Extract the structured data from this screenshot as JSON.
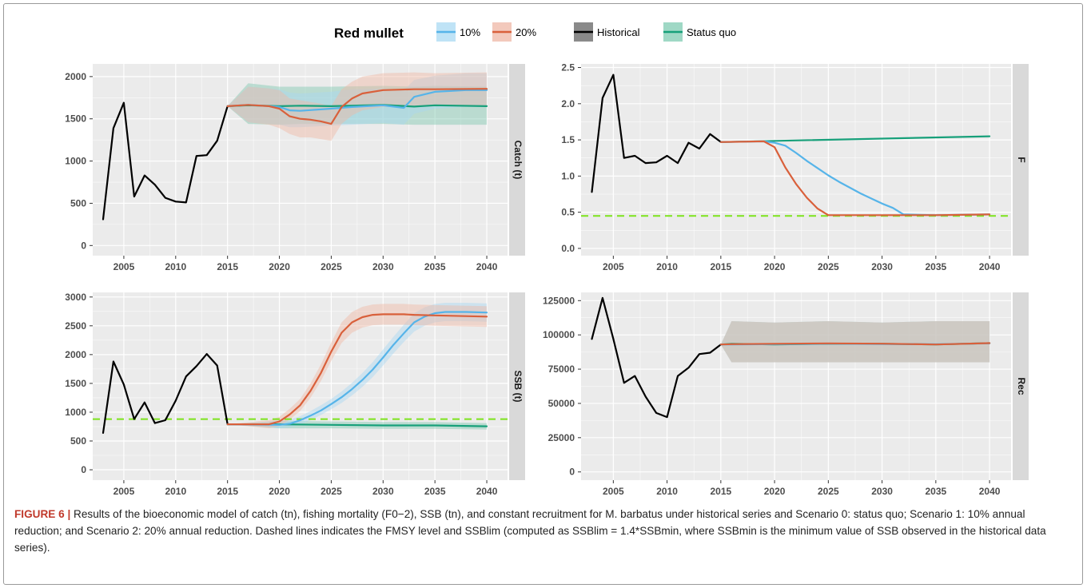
{
  "legend": {
    "title": "Red mullet",
    "items": [
      {
        "label": "10%",
        "color": "#56B4E9",
        "fill": "#bfe3f6"
      },
      {
        "label": "20%",
        "color": "#D9603B",
        "fill": "#f3c9bc"
      },
      {
        "label": "Historical",
        "color": "#000000",
        "fill": "#8a8a8a"
      },
      {
        "label": "Status quo",
        "color": "#17A07A",
        "fill": "#9fd8c5"
      }
    ]
  },
  "colors": {
    "panel_bg": "#EBEBEB",
    "grid": "#ffffff",
    "strip_bg": "#D9D9D9",
    "ref_line": "#7CE31C",
    "band_sq": "#7fc8b0",
    "band_10": "#a9d8f2",
    "band_20": "#efb7a5"
  },
  "caption": {
    "label": "FIGURE 6 |",
    "text": " Results of the bioeconomic model of catch (tn), fishing mortality (F0−2), SSB (tn), and constant recruitment for M. barbatus under historical series and Scenario 0: status quo; Scenario 1: 10% annual reduction; and Scenario 2: 20% annual reduction. Dashed lines indicates the FMSY level and SSBlim (computed as SSBlim = 1.4*SSBmin, where SSBmin is the minimum value of SSB observed in the historical data series)."
  },
  "chart_data": [
    {
      "type": "line",
      "strip_label": "Catch (t)",
      "xlim": [
        2002,
        2042
      ],
      "ylim": [
        -120,
        2150
      ],
      "x_ticks": [
        2005,
        2010,
        2015,
        2020,
        2025,
        2030,
        2035,
        2040
      ],
      "y_ticks": [
        0,
        500,
        1000,
        1500,
        2000
      ],
      "y_tick_labels": [
        "0",
        "500",
        "1000",
        "1500",
        "2000"
      ],
      "ref_line": null,
      "series": [
        {
          "name": "Historical",
          "x": [
            2003,
            2004,
            2005,
            2006,
            2007,
            2008,
            2009,
            2010,
            2011,
            2012,
            2013,
            2014,
            2015
          ],
          "y": [
            310,
            1390,
            1690,
            580,
            830,
            720,
            565,
            520,
            510,
            1060,
            1070,
            1240,
            1650
          ]
        },
        {
          "name": "Status quo",
          "x": [
            2015,
            2017,
            2020,
            2022,
            2025,
            2030,
            2033,
            2035,
            2040
          ],
          "y": [
            1650,
            1660,
            1650,
            1655,
            1650,
            1665,
            1645,
            1660,
            1650
          ],
          "lo": [
            1650,
            1440,
            1430,
            1440,
            1440,
            1440,
            1430,
            1430,
            1430
          ],
          "hi": [
            1650,
            1920,
            1880,
            1880,
            1880,
            1890,
            1880,
            1890,
            1880
          ]
        },
        {
          "name": "10%",
          "x": [
            2015,
            2017,
            2019,
            2020,
            2021,
            2022,
            2025,
            2027,
            2030,
            2032,
            2033,
            2035,
            2038,
            2040
          ],
          "y": [
            1650,
            1665,
            1650,
            1640,
            1600,
            1595,
            1620,
            1640,
            1660,
            1630,
            1760,
            1820,
            1840,
            1840
          ],
          "lo": [
            1650,
            1460,
            1440,
            1430,
            1400,
            1400,
            1420,
            1430,
            1450,
            1430,
            1560,
            1620,
            1640,
            1640
          ],
          "hi": [
            1650,
            1880,
            1860,
            1850,
            1810,
            1800,
            1820,
            1850,
            1860,
            1840,
            1960,
            2010,
            2040,
            2040
          ]
        },
        {
          "name": "20%",
          "x": [
            2015,
            2017,
            2019,
            2020,
            2021,
            2022,
            2023,
            2024,
            2025,
            2026,
            2027,
            2028,
            2030,
            2033,
            2035,
            2040
          ],
          "y": [
            1650,
            1665,
            1650,
            1620,
            1530,
            1500,
            1490,
            1470,
            1440,
            1640,
            1740,
            1800,
            1840,
            1850,
            1850,
            1855
          ],
          "lo": [
            1650,
            1460,
            1430,
            1390,
            1320,
            1280,
            1280,
            1260,
            1240,
            1440,
            1540,
            1600,
            1640,
            1650,
            1650,
            1650
          ],
          "hi": [
            1650,
            1880,
            1860,
            1840,
            1740,
            1720,
            1700,
            1680,
            1650,
            1850,
            1940,
            2000,
            2040,
            2050,
            2040,
            2050
          ]
        }
      ]
    },
    {
      "type": "line",
      "strip_label": "F",
      "xlim": [
        2002,
        2042
      ],
      "ylim": [
        -0.1,
        2.55
      ],
      "x_ticks": [
        2005,
        2010,
        2015,
        2020,
        2025,
        2030,
        2035,
        2040
      ],
      "y_ticks": [
        0,
        0.5,
        1,
        1.5,
        2,
        2.5
      ],
      "y_tick_labels": [
        "0.0",
        "0.5",
        "1.0",
        "1.5",
        "2.0",
        "2.5"
      ],
      "ref_line": 0.45,
      "series": [
        {
          "name": "Historical",
          "x": [
            2003,
            2004,
            2005,
            2006,
            2007,
            2008,
            2009,
            2010,
            2011,
            2012,
            2013,
            2014,
            2015
          ],
          "y": [
            0.78,
            2.08,
            2.4,
            1.25,
            1.28,
            1.18,
            1.19,
            1.28,
            1.18,
            1.46,
            1.38,
            1.58,
            1.47
          ]
        },
        {
          "name": "Status quo",
          "x": [
            2015,
            2040
          ],
          "y": [
            1.47,
            1.55
          ]
        },
        {
          "name": "10%",
          "x": [
            2015,
            2019,
            2020,
            2021,
            2022,
            2023,
            2024,
            2025,
            2026,
            2027,
            2028,
            2029,
            2030,
            2031,
            2032,
            2035,
            2040
          ],
          "y": [
            1.47,
            1.48,
            1.46,
            1.42,
            1.32,
            1.21,
            1.11,
            1.01,
            0.92,
            0.84,
            0.76,
            0.69,
            0.62,
            0.56,
            0.47,
            0.46,
            0.47
          ]
        },
        {
          "name": "20%",
          "x": [
            2015,
            2019,
            2020,
            2021,
            2022,
            2023,
            2024,
            2025,
            2030,
            2035,
            2040
          ],
          "y": [
            1.47,
            1.48,
            1.4,
            1.12,
            0.89,
            0.7,
            0.55,
            0.46,
            0.46,
            0.46,
            0.47
          ]
        }
      ]
    },
    {
      "type": "line",
      "strip_label": "SSB (t)",
      "xlim": [
        2002,
        2042
      ],
      "ylim": [
        -180,
        3080
      ],
      "x_ticks": [
        2005,
        2010,
        2015,
        2020,
        2025,
        2030,
        2035,
        2040
      ],
      "y_ticks": [
        0,
        500,
        1000,
        1500,
        2000,
        2500,
        3000
      ],
      "y_tick_labels": [
        "0",
        "500",
        "1000",
        "1500",
        "2000",
        "2500",
        "3000"
      ],
      "ref_line": 880,
      "series": [
        {
          "name": "Historical",
          "x": [
            2003,
            2004,
            2005,
            2006,
            2007,
            2008,
            2009,
            2010,
            2011,
            2012,
            2013,
            2014,
            2015
          ],
          "y": [
            640,
            1880,
            1480,
            880,
            1170,
            810,
            860,
            1200,
            1620,
            1800,
            2010,
            1810,
            790
          ]
        },
        {
          "name": "Status quo",
          "x": [
            2015,
            2020,
            2025,
            2030,
            2035,
            2040
          ],
          "y": [
            790,
            790,
            780,
            770,
            770,
            755
          ],
          "lo": [
            790,
            720,
            720,
            710,
            710,
            700
          ],
          "hi": [
            790,
            850,
            840,
            830,
            830,
            810
          ]
        },
        {
          "name": "10%",
          "x": [
            2015,
            2020,
            2021,
            2022,
            2023,
            2024,
            2025,
            2026,
            2027,
            2028,
            2029,
            2030,
            2031,
            2032,
            2033,
            2034,
            2035,
            2036,
            2038,
            2040
          ],
          "y": [
            790,
            780,
            800,
            860,
            940,
            1030,
            1140,
            1260,
            1400,
            1560,
            1740,
            1950,
            2170,
            2370,
            2560,
            2660,
            2720,
            2740,
            2740,
            2730
          ],
          "lo": [
            790,
            720,
            740,
            790,
            860,
            950,
            1050,
            1160,
            1290,
            1440,
            1610,
            1810,
            2020,
            2220,
            2400,
            2500,
            2560,
            2580,
            2580,
            2570
          ],
          "hi": [
            790,
            850,
            870,
            930,
            1020,
            1120,
            1230,
            1360,
            1510,
            1680,
            1870,
            2090,
            2310,
            2520,
            2720,
            2820,
            2880,
            2900,
            2900,
            2890
          ]
        },
        {
          "name": "20%",
          "x": [
            2015,
            2019,
            2020,
            2021,
            2022,
            2023,
            2024,
            2025,
            2026,
            2027,
            2028,
            2029,
            2030,
            2031,
            2032,
            2033,
            2035,
            2040
          ],
          "y": [
            790,
            790,
            840,
            960,
            1120,
            1370,
            1680,
            2050,
            2380,
            2560,
            2650,
            2690,
            2700,
            2700,
            2700,
            2690,
            2680,
            2660
          ],
          "lo": [
            790,
            720,
            760,
            870,
            1020,
            1250,
            1540,
            1890,
            2200,
            2380,
            2470,
            2510,
            2520,
            2520,
            2520,
            2510,
            2500,
            2480
          ],
          "hi": [
            790,
            860,
            920,
            1060,
            1230,
            1500,
            1830,
            2210,
            2560,
            2740,
            2830,
            2870,
            2880,
            2880,
            2880,
            2870,
            2860,
            2840
          ]
        }
      ]
    },
    {
      "type": "line",
      "strip_label": "Rec",
      "xlim": [
        2002,
        2042
      ],
      "ylim": [
        -6000,
        131000
      ],
      "x_ticks": [
        2005,
        2010,
        2015,
        2020,
        2025,
        2030,
        2035,
        2040
      ],
      "y_ticks": [
        0,
        25000,
        50000,
        75000,
        100000,
        125000
      ],
      "y_tick_labels": [
        "0",
        "25000",
        "50000",
        "75000",
        "100000",
        "125000"
      ],
      "ref_line": null,
      "series": [
        {
          "name": "Historical",
          "x": [
            2003,
            2004,
            2005,
            2006,
            2007,
            2008,
            2009,
            2010,
            2011,
            2012,
            2013,
            2014,
            2015
          ],
          "y": [
            97000,
            127000,
            97000,
            65000,
            70000,
            55000,
            43000,
            40000,
            70000,
            76000,
            86000,
            87000,
            93000
          ]
        },
        {
          "name": "Status quo",
          "x": [
            2015,
            2016,
            2020,
            2025,
            2030,
            2035,
            2040
          ],
          "y": [
            93000,
            93500,
            93000,
            93500,
            93500,
            93000,
            94000
          ],
          "lo": [
            93000,
            80000,
            80000,
            80000,
            80000,
            80000,
            80000
          ],
          "hi": [
            93000,
            110000,
            109000,
            110000,
            109000,
            110000,
            110000
          ]
        },
        {
          "name": "10%",
          "x": [
            2015,
            2016,
            2020,
            2025,
            2030,
            2035,
            2040
          ],
          "y": [
            93000,
            93000,
            93200,
            93600,
            93300,
            93200,
            93800
          ],
          "lo": [
            93000,
            80000,
            80000,
            80000,
            80000,
            80000,
            80000
          ],
          "hi": [
            93000,
            110000,
            109000,
            110000,
            109000,
            110000,
            110000
          ]
        },
        {
          "name": "20%",
          "x": [
            2015,
            2016,
            2020,
            2025,
            2030,
            2035,
            2040
          ],
          "y": [
            93000,
            93200,
            93500,
            93800,
            93600,
            93000,
            94000
          ],
          "lo": [
            93000,
            80000,
            80000,
            80000,
            80000,
            80000,
            80000
          ],
          "hi": [
            93000,
            110000,
            109000,
            110000,
            109000,
            110000,
            110000
          ]
        }
      ]
    }
  ]
}
